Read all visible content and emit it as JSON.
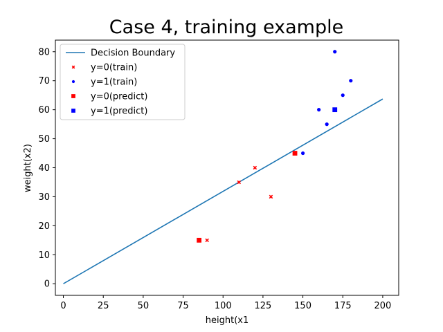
{
  "chart_data": {
    "type": "scatter",
    "title": "Case 4, training example",
    "xlabel": "height(x1",
    "ylabel": "weight(x2)",
    "xlim": [
      -5,
      210
    ],
    "ylim": [
      -4,
      84
    ],
    "xticks": [
      0,
      25,
      50,
      75,
      100,
      125,
      150,
      175,
      200
    ],
    "yticks": [
      0,
      10,
      20,
      30,
      40,
      50,
      60,
      70,
      80
    ],
    "grid": false,
    "legend_position": "top-left",
    "decision_boundary": {
      "name": "Decision Boundary",
      "color": "#1f77b4",
      "x": [
        0,
        200
      ],
      "y": [
        0,
        63.7
      ]
    },
    "series": [
      {
        "name": "y=0(train)",
        "marker": "x",
        "color": "#ff0000",
        "points": [
          [
            90,
            15
          ],
          [
            110,
            35
          ],
          [
            120,
            40
          ],
          [
            130,
            30
          ]
        ]
      },
      {
        "name": "y=1(train)",
        "marker": "circle",
        "color": "#0000ff",
        "points": [
          [
            150,
            45
          ],
          [
            160,
            60
          ],
          [
            165,
            55
          ],
          [
            170,
            80
          ],
          [
            175,
            65
          ],
          [
            180,
            70
          ]
        ]
      },
      {
        "name": "y=0(predict)",
        "marker": "square",
        "color": "#ff0000",
        "points": [
          [
            85,
            15
          ],
          [
            145,
            45
          ]
        ]
      },
      {
        "name": "y=1(predict)",
        "marker": "square",
        "color": "#0000ff",
        "points": [
          [
            170,
            60
          ]
        ]
      }
    ]
  }
}
